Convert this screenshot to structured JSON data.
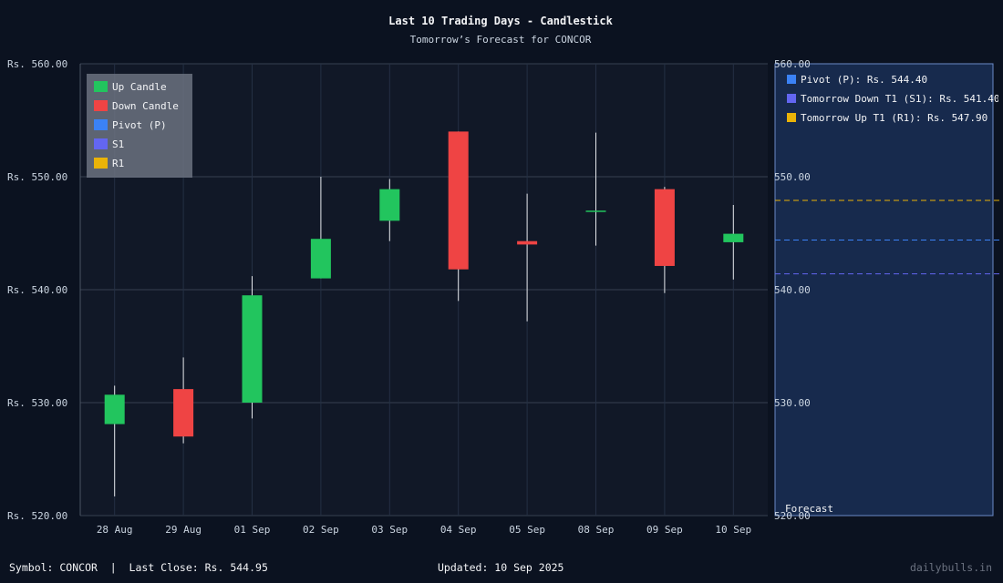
{
  "chart_data": {
    "type": "candlestick",
    "title": "Last 10 Trading Days - Candlestick",
    "subtitle": "Tomorrow’s Forecast for CONCOR",
    "categories": [
      "28 Aug",
      "29 Aug",
      "01 Sep",
      "02 Sep",
      "03 Sep",
      "04 Sep",
      "05 Sep",
      "08 Sep",
      "09 Sep",
      "10 Sep"
    ],
    "candles": [
      {
        "open": 528.1,
        "high": 531.5,
        "low": 521.7,
        "close": 530.7
      },
      {
        "open": 531.2,
        "high": 534.0,
        "low": 526.4,
        "close": 527.0
      },
      {
        "open": 530.0,
        "high": 541.2,
        "low": 528.6,
        "close": 539.5
      },
      {
        "open": 541.0,
        "high": 550.0,
        "low": 541.0,
        "close": 544.5
      },
      {
        "open": 546.1,
        "high": 549.8,
        "low": 544.3,
        "close": 548.9
      },
      {
        "open": 554.0,
        "high": 554.0,
        "low": 539.0,
        "close": 541.8
      },
      {
        "open": 544.3,
        "high": 548.5,
        "low": 537.2,
        "close": 544.0
      },
      {
        "open": 546.9,
        "high": 553.9,
        "low": 543.9,
        "close": 547.0
      },
      {
        "open": 548.9,
        "high": 549.1,
        "low": 539.7,
        "close": 542.1
      },
      {
        "open": 544.2,
        "high": 547.5,
        "low": 540.9,
        "close": 544.95
      }
    ],
    "ylim": [
      520,
      560
    ],
    "yticks": [
      520,
      530,
      540,
      550,
      560
    ],
    "ytick_labels": [
      "Rs. 520.00",
      "Rs. 530.00",
      "Rs. 540.00",
      "Rs. 550.00",
      "Rs. 560.00"
    ],
    "right_ytick_labels": [
      "520.00",
      "530.00",
      "540.00",
      "550.00",
      "560.00"
    ],
    "legend": [
      {
        "label": "Up Candle",
        "color": "#22c55e"
      },
      {
        "label": "Down Candle",
        "color": "#ef4444"
      },
      {
        "label": "Pivot (P)",
        "color": "#3b82f6"
      },
      {
        "label": "S1",
        "color": "#6366f1"
      },
      {
        "label": "R1",
        "color": "#eab308"
      }
    ],
    "forecast": {
      "label": "Forecast",
      "lines": [
        {
          "name": "Pivot (P)",
          "value": 544.4,
          "label": "Pivot (P): Rs. 544.40",
          "color": "#3b82f6"
        },
        {
          "name": "Tomorrow Down T1 (S1)",
          "value": 541.4,
          "label": "Tomorrow Down T1 (S1): Rs. 541.40",
          "color": "#6366f1"
        },
        {
          "name": "Tomorrow Up T1 (R1)",
          "value": 547.9,
          "label": "Tomorrow Up T1 (R1): Rs. 547.90",
          "color": "#eab308"
        }
      ]
    },
    "grid": true
  },
  "footer": {
    "left": "Symbol: CONCOR  |  Last Close: Rs. 544.95",
    "center": "Updated: 10 Sep 2025",
    "right": "dailybulls.in"
  },
  "colors": {
    "background": "#0b1220",
    "plot_bg": "#111827",
    "forecast_bg": "#172a4d",
    "up": "#22c55e",
    "down": "#ef4444"
  }
}
